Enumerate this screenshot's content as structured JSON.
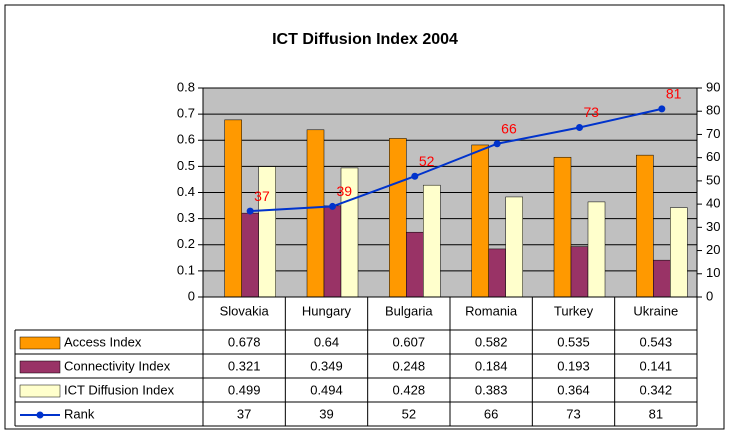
{
  "chart_data": {
    "type": "bar",
    "title": "ICT Diffusion Index 2004",
    "categories": [
      "Slovakia",
      "Hungary",
      "Bulgaria",
      "Romania",
      "Turkey",
      "Ukraine"
    ],
    "series": [
      {
        "name": "Access Index",
        "color": "#ff9900",
        "values": [
          0.678,
          0.64,
          0.607,
          0.582,
          0.535,
          0.543
        ]
      },
      {
        "name": "Connectivity Index",
        "color": "#993366",
        "values": [
          0.321,
          0.349,
          0.248,
          0.184,
          0.193,
          0.141
        ]
      },
      {
        "name": "ICT Diffusion Index",
        "color": "#ffffcc",
        "values": [
          0.499,
          0.494,
          0.428,
          0.383,
          0.364,
          0.342
        ]
      },
      {
        "name": "Rank",
        "color": "#0033cc",
        "type": "line",
        "axis": "y2",
        "label_color": "#ff0000",
        "values": [
          37,
          39,
          52,
          66,
          73,
          81
        ]
      }
    ],
    "ylim": [
      0,
      0.8
    ],
    "yticks": [
      0,
      0.1,
      0.2,
      0.3,
      0.4,
      0.5,
      0.6,
      0.7,
      0.8
    ],
    "y2lim": [
      0,
      90
    ],
    "y2ticks": [
      0,
      10,
      20,
      30,
      40,
      50,
      60,
      70,
      80,
      90
    ],
    "grid": true,
    "data_table": true
  }
}
